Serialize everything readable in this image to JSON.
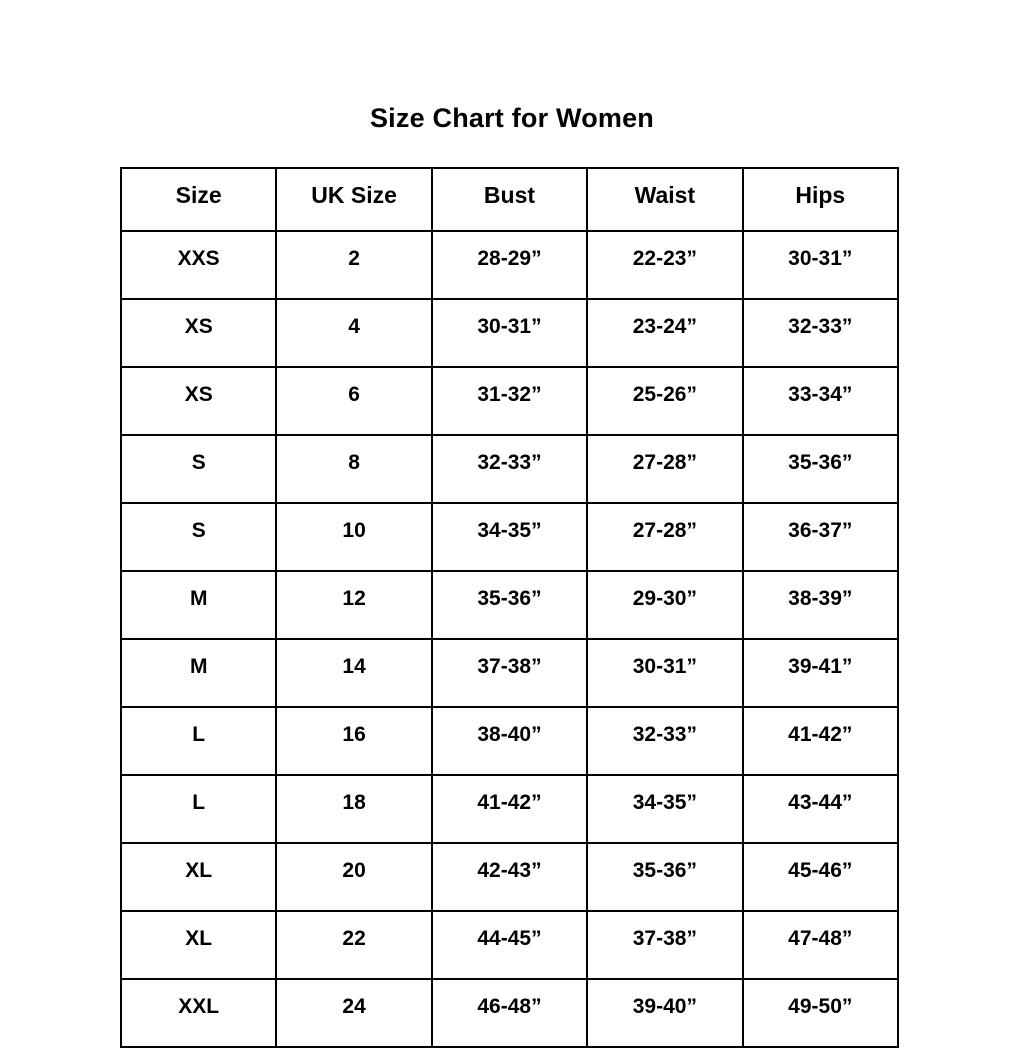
{
  "title": "Size Chart for Women",
  "colors": {
    "background": "#ffffff",
    "text": "#000000",
    "border": "#000000"
  },
  "table": {
    "headers": [
      "Size",
      "UK Size",
      "Bust",
      "Waist",
      "Hips"
    ],
    "rows": [
      [
        "XXS",
        "2",
        "28-29”",
        "22-23”",
        "30-31”"
      ],
      [
        "XS",
        "4",
        "30-31”",
        "23-24”",
        "32-33”"
      ],
      [
        "XS",
        "6",
        "31-32”",
        "25-26”",
        "33-34”"
      ],
      [
        "S",
        "8",
        "32-33”",
        "27-28”",
        "35-36”"
      ],
      [
        "S",
        "10",
        "34-35”",
        "27-28”",
        "36-37”"
      ],
      [
        "M",
        "12",
        "35-36”",
        "29-30”",
        "38-39”"
      ],
      [
        "M",
        "14",
        "37-38”",
        "30-31”",
        "39-41”"
      ],
      [
        "L",
        "16",
        "38-40”",
        "32-33”",
        "41-42”"
      ],
      [
        "L",
        "18",
        "41-42”",
        "34-35”",
        "43-44”"
      ],
      [
        "XL",
        "20",
        "42-43”",
        "35-36”",
        "45-46”"
      ],
      [
        "XL",
        "22",
        "44-45”",
        "37-38”",
        "47-48”"
      ],
      [
        "XXL",
        "24",
        "46-48”",
        "39-40”",
        "49-50”"
      ]
    ]
  },
  "chart_data": {
    "type": "table",
    "title": "Size Chart for Women",
    "columns": [
      "Size",
      "UK Size",
      "Bust",
      "Waist",
      "Hips"
    ],
    "rows": [
      [
        "XXS",
        "2",
        "28-29”",
        "22-23”",
        "30-31”"
      ],
      [
        "XS",
        "4",
        "30-31”",
        "23-24”",
        "32-33”"
      ],
      [
        "XS",
        "6",
        "31-32”",
        "25-26”",
        "33-34”"
      ],
      [
        "S",
        "8",
        "32-33”",
        "27-28”",
        "35-36”"
      ],
      [
        "S",
        "10",
        "34-35”",
        "27-28”",
        "36-37”"
      ],
      [
        "M",
        "12",
        "35-36”",
        "29-30”",
        "38-39”"
      ],
      [
        "M",
        "14",
        "37-38”",
        "30-31”",
        "39-41”"
      ],
      [
        "L",
        "16",
        "38-40”",
        "32-33”",
        "41-42”"
      ],
      [
        "L",
        "18",
        "41-42”",
        "34-35”",
        "43-44”"
      ],
      [
        "XL",
        "20",
        "42-43”",
        "35-36”",
        "45-46”"
      ],
      [
        "XL",
        "22",
        "44-45”",
        "37-38”",
        "47-48”"
      ],
      [
        "XXL",
        "24",
        "46-48”",
        "39-40”",
        "49-50”"
      ]
    ]
  }
}
